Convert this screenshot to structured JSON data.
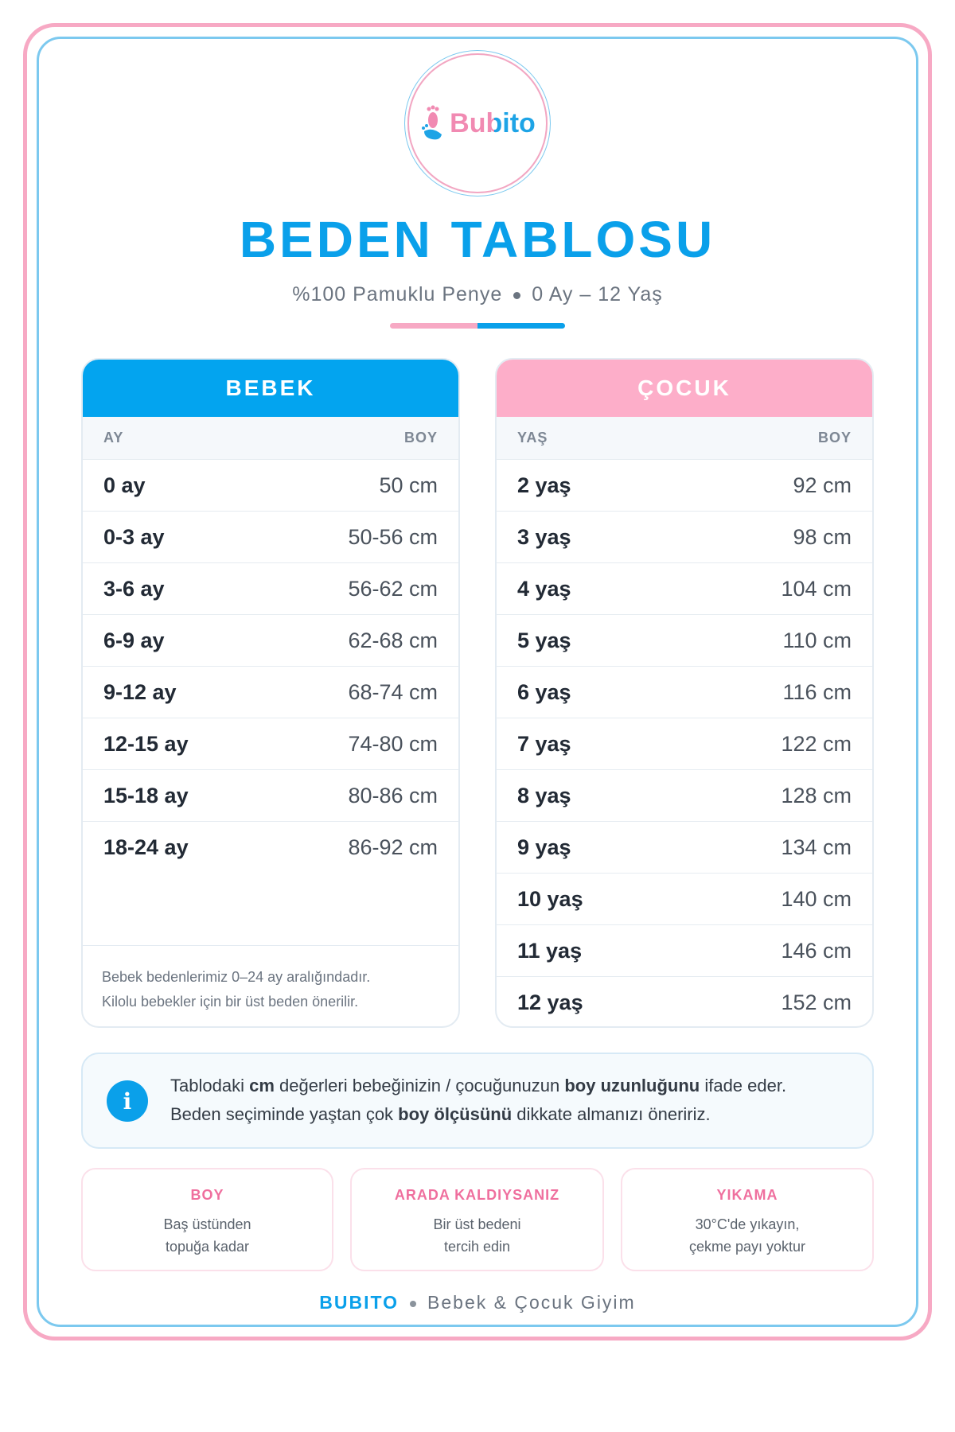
{
  "header": {
    "brand": "Bubito",
    "title": "BEDEN TABLOSU",
    "subtitle": [
      "%100 Pamuklu Penye",
      "0 Ay – 12 Yaş"
    ]
  },
  "tables": [
    {
      "title": "BEBEK",
      "color": "#03a4ef",
      "columns": [
        "AY",
        "BOY"
      ],
      "rows": [
        [
          "0 ay",
          "50 cm"
        ],
        [
          "0-3 ay",
          "50-56 cm"
        ],
        [
          "3-6 ay",
          "56-62 cm"
        ],
        [
          "6-9 ay",
          "62-68 cm"
        ],
        [
          "9-12 ay",
          "68-74 cm"
        ],
        [
          "12-15 ay",
          "74-80 cm"
        ],
        [
          "15-18 ay",
          "80-86 cm"
        ],
        [
          "18-24 ay",
          "86-92 cm"
        ]
      ],
      "note": [
        "Bebek bedenlerimiz 0–24 ay aralığındadır.",
        "Kilolu bebekler için bir üst beden önerilir."
      ]
    },
    {
      "title": "ÇOCUK",
      "color": "#fdaec9",
      "columns": [
        "YAŞ",
        "BOY"
      ],
      "rows": [
        [
          "2 yaş",
          "92 cm"
        ],
        [
          "3 yaş",
          "98 cm"
        ],
        [
          "4 yaş",
          "104 cm"
        ],
        [
          "5 yaş",
          "110 cm"
        ],
        [
          "6 yaş",
          "116 cm"
        ],
        [
          "7 yaş",
          "122 cm"
        ],
        [
          "8 yaş",
          "128 cm"
        ],
        [
          "9 yaş",
          "134 cm"
        ],
        [
          "10 yaş",
          "140 cm"
        ],
        [
          "11 yaş",
          "146 cm"
        ],
        [
          "12 yaş",
          "152 cm"
        ]
      ]
    }
  ],
  "info": {
    "icon": "i",
    "segments": [
      {
        "text": "Tablodaki ",
        "bold": false
      },
      {
        "text": "cm",
        "bold": true
      },
      {
        "text": " değerleri bebeğinizin / çocuğunuzun ",
        "bold": false
      },
      {
        "text": "boy uzunluğunu",
        "bold": true
      },
      {
        "text": " ifade eder. Beden seçiminde yaştan çok ",
        "bold": false
      },
      {
        "text": "boy ölçüsünü",
        "bold": true
      },
      {
        "text": " dikkate almanızı öneririz.",
        "bold": false
      }
    ]
  },
  "tips": [
    {
      "title": "BOY",
      "lines": [
        "Baş üstünden",
        "topuğa kadar"
      ]
    },
    {
      "title": "ARADA KALDIYSANIZ",
      "lines": [
        "Bir üst bedeni",
        "tercih edin"
      ]
    },
    {
      "title": "YIKAMA",
      "lines": [
        "30°C'de yıkayın,",
        "çekme payı yoktur"
      ]
    }
  ],
  "footer": {
    "brand": "BUBITO",
    "tagline": "Bebek & Çocuk Giyim"
  }
}
